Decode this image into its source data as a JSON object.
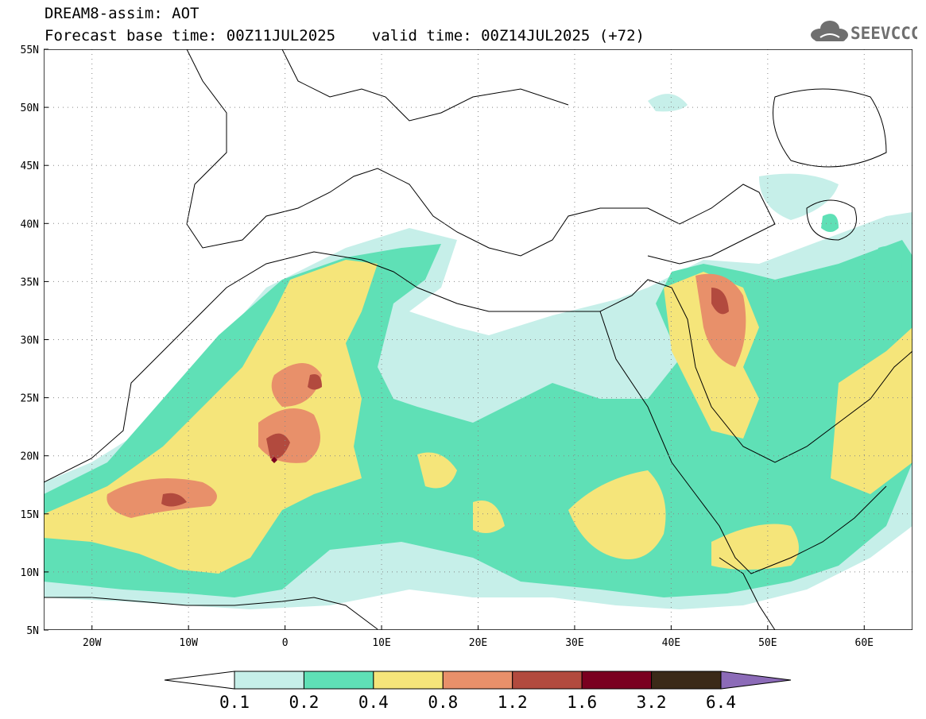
{
  "header": {
    "line1": "DREAM8-assim: AOT",
    "line2": "Forecast base time: 00Z11JUL2025    valid time: 00Z14JUL2025 (+72)"
  },
  "logo": {
    "text": "SEEVCCC",
    "icon": "cloud-icon"
  },
  "map": {
    "lon_labels": [
      "20W",
      "10W",
      "0",
      "10E",
      "20E",
      "30E",
      "40E",
      "50E",
      "60E"
    ],
    "lat_labels": [
      "55N",
      "50N",
      "45N",
      "40N",
      "35N",
      "30N",
      "25N",
      "20N",
      "15N",
      "10N",
      "5N"
    ],
    "lon_range": [
      -25,
      65
    ],
    "lat_range": [
      5,
      55
    ],
    "gridlines": "dotted"
  },
  "colorbar": {
    "levels": [
      "0.1",
      "0.2",
      "0.4",
      "0.8",
      "1.2",
      "1.6",
      "3.2",
      "6.4"
    ],
    "colors": [
      "#ffffff",
      "#c6efe9",
      "#5fe0b6",
      "#f5e57a",
      "#e8906a",
      "#b24a3e",
      "#7a0020",
      "#3b2a18",
      "#8c6bb8"
    ]
  }
}
